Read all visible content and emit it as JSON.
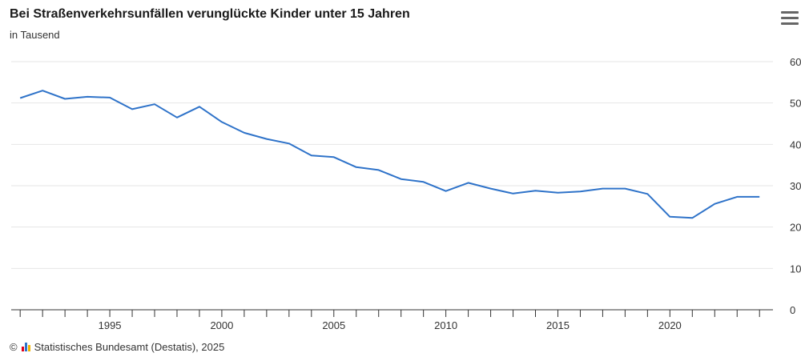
{
  "header": {
    "title": "Bei Straßenverkehrsunfällen verunglückte Kinder unter 15 Jahren",
    "subtitle": "in Tausend"
  },
  "footer": {
    "copyright": "©",
    "source": "Statistisches Bundesamt (Destatis), 2025"
  },
  "menu_icon": "hamburger-menu-icon",
  "colors": {
    "line": "#2f73c9",
    "grid": "#e6e6e6",
    "axis": "#333333"
  },
  "chart_data": {
    "type": "line",
    "title": "Bei Straßenverkehrsunfällen verunglückte Kinder unter 15 Jahren",
    "subtitle": "in Tausend",
    "xlabel": "",
    "ylabel": "",
    "x": [
      1991,
      1992,
      1993,
      1994,
      1995,
      1996,
      1997,
      1998,
      1999,
      2000,
      2001,
      2002,
      2003,
      2004,
      2005,
      2006,
      2007,
      2008,
      2009,
      2010,
      2011,
      2012,
      2013,
      2014,
      2015,
      2016,
      2017,
      2018,
      2019,
      2020,
      2021,
      2022,
      2023,
      2024
    ],
    "series": [
      {
        "values": [
          51.2,
          53.0,
          51.0,
          51.5,
          51.3,
          48.5,
          49.7,
          46.5,
          49.1,
          45.4,
          42.8,
          41.3,
          40.2,
          37.3,
          36.9,
          34.5,
          33.8,
          31.6,
          30.9,
          28.7,
          30.7,
          29.3,
          28.1,
          28.8,
          28.3,
          28.6,
          29.3,
          29.3,
          28.0,
          22.5,
          22.2,
          25.6,
          27.3,
          27.3
        ]
      }
    ],
    "ylim": [
      0,
      60
    ],
    "yticks": [
      0,
      10,
      20,
      30,
      40,
      50,
      60
    ],
    "xticks": [
      1995,
      2000,
      2005,
      2010,
      2015,
      2020
    ],
    "xlim": [
      1990.6,
      2024.6
    ],
    "y_axis_side": "right",
    "grid": true,
    "legend": "none"
  }
}
